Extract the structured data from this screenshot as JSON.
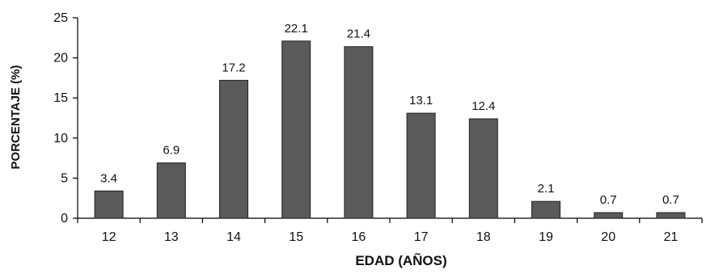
{
  "chart_data": {
    "type": "bar",
    "categories": [
      "12",
      "13",
      "14",
      "15",
      "16",
      "17",
      "18",
      "19",
      "20",
      "21"
    ],
    "values": [
      3.4,
      6.9,
      17.2,
      22.1,
      21.4,
      13.1,
      12.4,
      2.1,
      0.7,
      0.7
    ],
    "data_labels": [
      "3.4",
      "6.9",
      "17.2",
      "22.1",
      "21.4",
      "13.1",
      "12.4",
      "2.1",
      "0.7",
      "0.7"
    ],
    "xlabel": "EDAD (AÑOS)",
    "ylabel": "PORCENTAJE (%)",
    "ylim": [
      0,
      25
    ],
    "yticks": [
      "0",
      "5",
      "10",
      "15",
      "20",
      "25"
    ],
    "grid": false,
    "legend": "none",
    "bar_color": "#5a5a5a"
  }
}
